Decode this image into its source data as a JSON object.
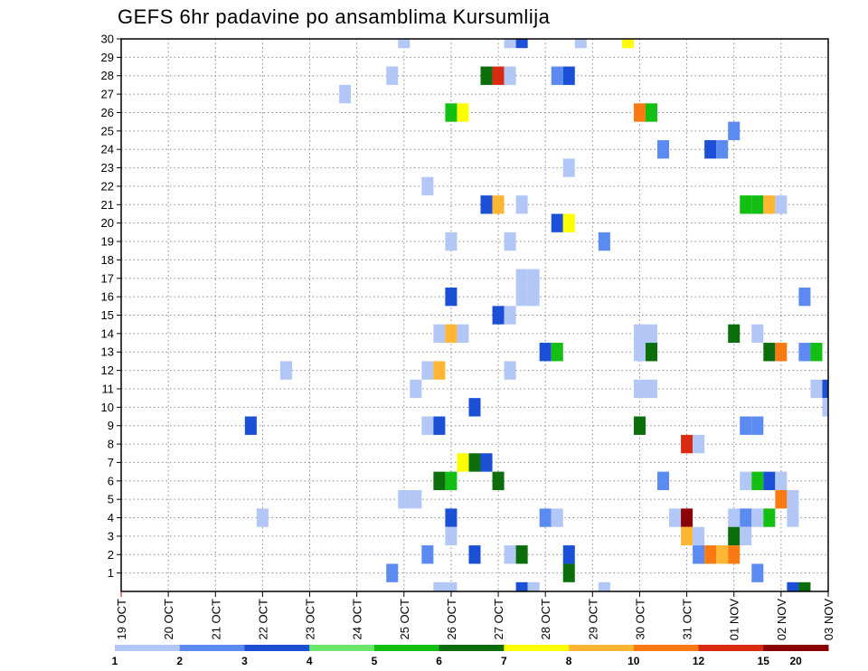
{
  "chart_data": {
    "type": "heatmap",
    "title": "GEFS 6hr padavine po ansamblima Kursumlija",
    "x_ticks": [
      "19 OCT",
      "20 OCT",
      "21 OCT",
      "22 OCT",
      "23 OCT",
      "24 OCT",
      "25 OCT",
      "26 OCT",
      "27 OCT",
      "28 OCT",
      "29 OCT",
      "30 OCT",
      "31 OCT",
      "01 NOV",
      "02 NOV",
      "03 NOV"
    ],
    "y_ticks": [
      "1",
      "2",
      "3",
      "4",
      "5",
      "6",
      "7",
      "8",
      "9",
      "10",
      "11",
      "12",
      "13",
      "14",
      "15",
      "16",
      "17",
      "18",
      "19",
      "20",
      "21",
      "22",
      "23",
      "24",
      "25",
      "26",
      "27",
      "28",
      "29",
      "30"
    ],
    "grid": true,
    "colorbar": {
      "labels": [
        "1",
        "2",
        "3",
        "4",
        "5",
        "6",
        "7",
        "8",
        "10",
        "12",
        "15",
        "20"
      ],
      "colors": [
        "#b3c7f7",
        "#5b8af0",
        "#1a4fd6",
        "#6be86b",
        "#12bf12",
        "#0b6e0b",
        "#ffff00",
        "#ffb733",
        "#f97a12",
        "#d92b12",
        "#8b0000"
      ]
    },
    "cells": [
      {
        "x": "25 OCT 00",
        "member": 30,
        "value": 1
      },
      {
        "x": "27 OCT 06",
        "member": 30,
        "value": 1
      },
      {
        "x": "27 OCT 12",
        "member": 30,
        "value": 3
      },
      {
        "x": "28 OCT 18",
        "member": 30,
        "value": 1
      },
      {
        "x": "29 OCT 18",
        "member": 30,
        "value": 7
      },
      {
        "x": "24 OCT 18",
        "member": 28,
        "value": 1
      },
      {
        "x": "26 OCT 18",
        "member": 28,
        "value": 6
      },
      {
        "x": "27 OCT 00",
        "member": 28,
        "value": 13
      },
      {
        "x": "27 OCT 06",
        "member": 28,
        "value": 1
      },
      {
        "x": "28 OCT 06",
        "member": 28,
        "value": 2
      },
      {
        "x": "28 OCT 12",
        "member": 28,
        "value": 3
      },
      {
        "x": "23 OCT 18",
        "member": 27,
        "value": 1
      },
      {
        "x": "26 OCT 00",
        "member": 26,
        "value": 5
      },
      {
        "x": "26 OCT 06",
        "member": 26,
        "value": 7
      },
      {
        "x": "30 OCT 00",
        "member": 26,
        "value": 11
      },
      {
        "x": "30 OCT 06",
        "member": 26,
        "value": 5
      },
      {
        "x": "01 NOV 00",
        "member": 25,
        "value": 2
      },
      {
        "x": "30 OCT 12",
        "member": 24,
        "value": 2
      },
      {
        "x": "31 OCT 12",
        "member": 24,
        "value": 3
      },
      {
        "x": "31 OCT 18",
        "member": 24,
        "value": 2
      },
      {
        "x": "28 OCT 12",
        "member": 23,
        "value": 1
      },
      {
        "x": "25 OCT 12",
        "member": 22,
        "value": 1
      },
      {
        "x": "26 OCT 18",
        "member": 21,
        "value": 3
      },
      {
        "x": "27 OCT 00",
        "member": 21,
        "value": 9
      },
      {
        "x": "27 OCT 12",
        "member": 21,
        "value": 1
      },
      {
        "x": "01 NOV 06",
        "member": 21,
        "value": 5
      },
      {
        "x": "01 NOV 12",
        "member": 21,
        "value": 5
      },
      {
        "x": "01 NOV 18",
        "member": 21,
        "value": 9
      },
      {
        "x": "02 NOV 00",
        "member": 21,
        "value": 1
      },
      {
        "x": "28 OCT 06",
        "member": 20,
        "value": 3
      },
      {
        "x": "28 OCT 12",
        "member": 20,
        "value": 7
      },
      {
        "x": "26 OCT 00",
        "member": 19,
        "value": 1
      },
      {
        "x": "27 OCT 06",
        "member": 19,
        "value": 1
      },
      {
        "x": "29 OCT 06",
        "member": 19,
        "value": 2
      },
      {
        "x": "27 OCT 12",
        "member": 17,
        "value": 1
      },
      {
        "x": "27 OCT 18",
        "member": 17,
        "value": 1
      },
      {
        "x": "26 OCT 00",
        "member": 16,
        "value": 3
      },
      {
        "x": "27 OCT 12",
        "member": 16,
        "value": 1
      },
      {
        "x": "27 OCT 18",
        "member": 16,
        "value": 1
      },
      {
        "x": "02 NOV 12",
        "member": 16,
        "value": 2
      },
      {
        "x": "27 OCT 00",
        "member": 15,
        "value": 3
      },
      {
        "x": "27 OCT 06",
        "member": 15,
        "value": 1
      },
      {
        "x": "25 OCT 18",
        "member": 14,
        "value": 1
      },
      {
        "x": "26 OCT 00",
        "member": 14,
        "value": 9
      },
      {
        "x": "26 OCT 06",
        "member": 14,
        "value": 1
      },
      {
        "x": "30 OCT 00",
        "member": 14,
        "value": 1
      },
      {
        "x": "30 OCT 06",
        "member": 14,
        "value": 1
      },
      {
        "x": "01 NOV 00",
        "member": 14,
        "value": 6
      },
      {
        "x": "01 NOV 12",
        "member": 14,
        "value": 1
      },
      {
        "x": "28 OCT 00",
        "member": 13,
        "value": 3
      },
      {
        "x": "28 OCT 06",
        "member": 13,
        "value": 5
      },
      {
        "x": "30 OCT 00",
        "member": 13,
        "value": 1
      },
      {
        "x": "30 OCT 06",
        "member": 13,
        "value": 6
      },
      {
        "x": "01 NOV 18",
        "member": 13,
        "value": 6
      },
      {
        "x": "02 NOV 00",
        "member": 13,
        "value": 11
      },
      {
        "x": "02 NOV 12",
        "member": 13,
        "value": 2
      },
      {
        "x": "02 NOV 18",
        "member": 13,
        "value": 5
      },
      {
        "x": "22 OCT 12",
        "member": 12,
        "value": 1
      },
      {
        "x": "25 OCT 12",
        "member": 12,
        "value": 1
      },
      {
        "x": "25 OCT 18",
        "member": 12,
        "value": 9
      },
      {
        "x": "27 OCT 06",
        "member": 12,
        "value": 1
      },
      {
        "x": "25 OCT 06",
        "member": 11,
        "value": 1
      },
      {
        "x": "30 OCT 00",
        "member": 11,
        "value": 1
      },
      {
        "x": "30 OCT 06",
        "member": 11,
        "value": 1
      },
      {
        "x": "02 NOV 18",
        "member": 11,
        "value": 1
      },
      {
        "x": "03 NOV 00",
        "member": 11,
        "value": 3
      },
      {
        "x": "26 OCT 12",
        "member": 10,
        "value": 3
      },
      {
        "x": "03 NOV 00",
        "member": 10,
        "value": 1
      },
      {
        "x": "21 OCT 18",
        "member": 9,
        "value": 3
      },
      {
        "x": "25 OCT 12",
        "member": 9,
        "value": 1
      },
      {
        "x": "25 OCT 18",
        "member": 9,
        "value": 3
      },
      {
        "x": "30 OCT 00",
        "member": 9,
        "value": 6
      },
      {
        "x": "01 NOV 06",
        "member": 9,
        "value": 2
      },
      {
        "x": "01 NOV 12",
        "member": 9,
        "value": 2
      },
      {
        "x": "31 OCT 00",
        "member": 8,
        "value": 14
      },
      {
        "x": "31 OCT 06",
        "member": 8,
        "value": 1
      },
      {
        "x": "26 OCT 06",
        "member": 7,
        "value": 7
      },
      {
        "x": "26 OCT 12",
        "member": 7,
        "value": 6
      },
      {
        "x": "26 OCT 18",
        "member": 7,
        "value": 3
      },
      {
        "x": "25 OCT 18",
        "member": 6,
        "value": 6
      },
      {
        "x": "26 OCT 00",
        "member": 6,
        "value": 5
      },
      {
        "x": "27 OCT 00",
        "member": 6,
        "value": 6
      },
      {
        "x": "30 OCT 12",
        "member": 6,
        "value": 2
      },
      {
        "x": "01 NOV 06",
        "member": 6,
        "value": 1
      },
      {
        "x": "01 NOV 12",
        "member": 6,
        "value": 5
      },
      {
        "x": "01 NOV 18",
        "member": 6,
        "value": 3
      },
      {
        "x": "02 NOV 00",
        "member": 6,
        "value": 1
      },
      {
        "x": "25 OCT 00",
        "member": 5,
        "value": 1
      },
      {
        "x": "25 OCT 06",
        "member": 5,
        "value": 1
      },
      {
        "x": "02 NOV 00",
        "member": 5,
        "value": 11
      },
      {
        "x": "02 NOV 06",
        "member": 5,
        "value": 1
      },
      {
        "x": "22 OCT 00",
        "member": 4,
        "value": 1
      },
      {
        "x": "26 OCT 00",
        "member": 4,
        "value": 3
      },
      {
        "x": "28 OCT 00",
        "member": 4,
        "value": 2
      },
      {
        "x": "28 OCT 06",
        "member": 4,
        "value": 1
      },
      {
        "x": "30 OCT 18",
        "member": 4,
        "value": 1
      },
      {
        "x": "31 OCT 00",
        "member": 4,
        "value": 25
      },
      {
        "x": "01 NOV 00",
        "member": 4,
        "value": 1
      },
      {
        "x": "01 NOV 06",
        "member": 4,
        "value": 2
      },
      {
        "x": "01 NOV 12",
        "member": 4,
        "value": 1
      },
      {
        "x": "01 NOV 18",
        "member": 4,
        "value": 5
      },
      {
        "x": "02 NOV 06",
        "member": 4,
        "value": 1
      },
      {
        "x": "26 OCT 00",
        "member": 3,
        "value": 1
      },
      {
        "x": "31 OCT 00",
        "member": 3,
        "value": 9
      },
      {
        "x": "31 OCT 06",
        "member": 3,
        "value": 1
      },
      {
        "x": "01 NOV 00",
        "member": 3,
        "value": 6
      },
      {
        "x": "01 NOV 06",
        "member": 3,
        "value": 1
      },
      {
        "x": "25 OCT 12",
        "member": 2,
        "value": 2
      },
      {
        "x": "26 OCT 12",
        "member": 2,
        "value": 3
      },
      {
        "x": "27 OCT 06",
        "member": 2,
        "value": 1
      },
      {
        "x": "27 OCT 12",
        "member": 2,
        "value": 6
      },
      {
        "x": "28 OCT 12",
        "member": 2,
        "value": 3
      },
      {
        "x": "31 OCT 06",
        "member": 2,
        "value": 2
      },
      {
        "x": "31 OCT 12",
        "member": 2,
        "value": 11
      },
      {
        "x": "31 OCT 18",
        "member": 2,
        "value": 9
      },
      {
        "x": "01 NOV 00",
        "member": 2,
        "value": 11
      },
      {
        "x": "24 OCT 18",
        "member": 1,
        "value": 2
      },
      {
        "x": "28 OCT 12",
        "member": 1,
        "value": 6
      },
      {
        "x": "01 NOV 12",
        "member": 1,
        "value": 2
      },
      {
        "x": "25 OCT 18",
        "member": 0,
        "value": 1
      },
      {
        "x": "26 OCT 00",
        "member": 0,
        "value": 1
      },
      {
        "x": "27 OCT 12",
        "member": 0,
        "value": 3
      },
      {
        "x": "27 OCT 18",
        "member": 0,
        "value": 1
      },
      {
        "x": "29 OCT 06",
        "member": 0,
        "value": 1
      },
      {
        "x": "02 NOV 06",
        "member": 0,
        "value": 3
      },
      {
        "x": "02 NOV 12",
        "member": 0,
        "value": 6
      }
    ]
  }
}
